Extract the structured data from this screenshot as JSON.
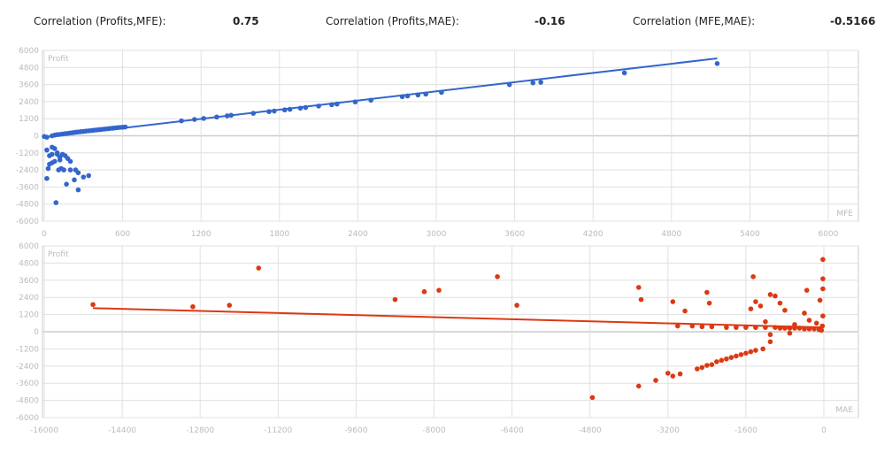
{
  "correlations": [
    {
      "label": "Correlation (Profits,MFE):",
      "value": "0.75"
    },
    {
      "label": "Correlation (Profits,MAE):",
      "value": "-0.16"
    },
    {
      "label": "Correlation (MFE,MAE):",
      "value": "-0.5166"
    }
  ],
  "colors": {
    "mfe": "#3366cc",
    "mae": "#dc3912",
    "grid": "#e0e0e0",
    "tick": "#bbbbbb"
  },
  "chart_data": [
    {
      "type": "scatter",
      "title": "",
      "xlabel": "MFE",
      "ylabel": "Profit",
      "xlim": [
        0,
        6230
      ],
      "ylim": [
        -6000,
        6000
      ],
      "xticks": [
        "0",
        "600",
        "1200",
        "1800",
        "2400",
        "3000",
        "3600",
        "4200",
        "4800",
        "5400",
        "6000"
      ],
      "yticks": [
        "6000",
        "4800",
        "3600",
        "2400",
        "1200",
        "0",
        "-1200",
        "-2400",
        "-3600",
        "-4800",
        "-6000"
      ],
      "trendline": [
        [
          0,
          -100
        ],
        [
          5150,
          5440
        ]
      ],
      "points": [
        [
          0,
          -50
        ],
        [
          20,
          -100
        ],
        [
          60,
          0
        ],
        [
          80,
          50
        ],
        [
          100,
          80
        ],
        [
          120,
          100
        ],
        [
          140,
          120
        ],
        [
          160,
          150
        ],
        [
          180,
          170
        ],
        [
          200,
          200
        ],
        [
          220,
          220
        ],
        [
          240,
          250
        ],
        [
          260,
          270
        ],
        [
          280,
          290
        ],
        [
          300,
          310
        ],
        [
          320,
          330
        ],
        [
          340,
          350
        ],
        [
          360,
          370
        ],
        [
          380,
          390
        ],
        [
          400,
          410
        ],
        [
          420,
          430
        ],
        [
          440,
          450
        ],
        [
          460,
          470
        ],
        [
          480,
          490
        ],
        [
          500,
          510
        ],
        [
          520,
          530
        ],
        [
          540,
          550
        ],
        [
          560,
          570
        ],
        [
          580,
          590
        ],
        [
          600,
          600
        ],
        [
          620,
          620
        ],
        [
          1050,
          1050
        ],
        [
          1150,
          1150
        ],
        [
          1220,
          1220
        ],
        [
          1320,
          1320
        ],
        [
          1400,
          1400
        ],
        [
          1430,
          1440
        ],
        [
          1600,
          1580
        ],
        [
          1720,
          1700
        ],
        [
          1760,
          1740
        ],
        [
          1840,
          1820
        ],
        [
          1880,
          1860
        ],
        [
          1960,
          1940
        ],
        [
          2000,
          1990
        ],
        [
          2100,
          2090
        ],
        [
          2200,
          2180
        ],
        [
          2240,
          2230
        ],
        [
          2380,
          2380
        ],
        [
          2500,
          2500
        ],
        [
          2740,
          2750
        ],
        [
          2780,
          2800
        ],
        [
          2860,
          2870
        ],
        [
          2920,
          2930
        ],
        [
          3040,
          3050
        ],
        [
          3560,
          3600
        ],
        [
          3740,
          3720
        ],
        [
          3800,
          3760
        ],
        [
          4440,
          4420
        ],
        [
          5150,
          5080
        ],
        [
          20,
          -1000
        ],
        [
          60,
          -800
        ],
        [
          80,
          -900
        ],
        [
          40,
          -1400
        ],
        [
          60,
          -1300
        ],
        [
          100,
          -1200
        ],
        [
          120,
          -1500
        ],
        [
          140,
          -1300
        ],
        [
          160,
          -1400
        ],
        [
          180,
          -1600
        ],
        [
          200,
          -1800
        ],
        [
          60,
          -1900
        ],
        [
          40,
          -2000
        ],
        [
          80,
          -1800
        ],
        [
          110,
          -2400
        ],
        [
          130,
          -2300
        ],
        [
          150,
          -2400
        ],
        [
          200,
          -2400
        ],
        [
          30,
          -2300
        ],
        [
          240,
          -2400
        ],
        [
          260,
          -2600
        ],
        [
          20,
          -3000
        ],
        [
          170,
          -3400
        ],
        [
          230,
          -3100
        ],
        [
          260,
          -3800
        ],
        [
          300,
          -2900
        ],
        [
          340,
          -2800
        ],
        [
          90,
          -4700
        ],
        [
          100,
          -1300
        ],
        [
          120,
          -1700
        ]
      ]
    },
    {
      "type": "scatter",
      "title": "",
      "xlabel": "MAE",
      "ylabel": "Profit",
      "xlim": [
        -16300,
        700
      ],
      "ylim": [
        -6000,
        6000
      ],
      "xticks": [
        "-16000",
        "-14400",
        "-12800",
        "-11200",
        "-9600",
        "-8000",
        "-6400",
        "-4800",
        "-3200",
        "-1600",
        "0"
      ],
      "yticks": [
        "6000",
        "4800",
        "3600",
        "2400",
        "1200",
        "0",
        "-1200",
        "-2400",
        "-3600",
        "-4800",
        "-6000"
      ],
      "trendline": [
        [
          -15000,
          1650
        ],
        [
          0,
          300
        ]
      ],
      "points": [
        [
          -15000,
          1900
        ],
        [
          -12950,
          1750
        ],
        [
          -12200,
          1850
        ],
        [
          -11600,
          4450
        ],
        [
          -8800,
          2250
        ],
        [
          -8200,
          2800
        ],
        [
          -7900,
          2900
        ],
        [
          -6700,
          3850
        ],
        [
          -6300,
          1850
        ],
        [
          -4750,
          -4600
        ],
        [
          -3800,
          3100
        ],
        [
          -3750,
          2250
        ],
        [
          -3800,
          -3800
        ],
        [
          -3450,
          -3400
        ],
        [
          -3200,
          -2900
        ],
        [
          -3100,
          -3100
        ],
        [
          -2950,
          -2950
        ],
        [
          -3100,
          2100
        ],
        [
          -2850,
          1450
        ],
        [
          -2600,
          -2600
        ],
        [
          -2500,
          -2500
        ],
        [
          -2400,
          -2350
        ],
        [
          -2300,
          -2300
        ],
        [
          -2400,
          2750
        ],
        [
          -2350,
          2000
        ],
        [
          -2200,
          -2100
        ],
        [
          -2100,
          -2000
        ],
        [
          -2000,
          -1900
        ],
        [
          -1900,
          -1800
        ],
        [
          -1800,
          -1700
        ],
        [
          -1700,
          -1600
        ],
        [
          -1600,
          -1500
        ],
        [
          -1500,
          -1400
        ],
        [
          -1400,
          -1300
        ],
        [
          -1250,
          -1200
        ],
        [
          -1100,
          -700
        ],
        [
          -1450,
          3850
        ],
        [
          -1400,
          2100
        ],
        [
          -1500,
          1600
        ],
        [
          -1300,
          1800
        ],
        [
          -1100,
          2600
        ],
        [
          -1000,
          2500
        ],
        [
          -900,
          2000
        ],
        [
          -800,
          1500
        ],
        [
          -350,
          2900
        ],
        [
          -400,
          1300
        ],
        [
          -2700,
          400
        ],
        [
          -2500,
          350
        ],
        [
          -2300,
          350
        ],
        [
          -2000,
          300
        ],
        [
          -1800,
          300
        ],
        [
          -1600,
          300
        ],
        [
          -1400,
          300
        ],
        [
          -1200,
          300
        ],
        [
          -1000,
          300
        ],
        [
          -900,
          250
        ],
        [
          -800,
          250
        ],
        [
          -700,
          250
        ],
        [
          -600,
          250
        ],
        [
          -500,
          250
        ],
        [
          -400,
          200
        ],
        [
          -300,
          200
        ],
        [
          -200,
          200
        ],
        [
          -100,
          150
        ],
        [
          -50,
          100
        ],
        [
          -30,
          400
        ],
        [
          -20,
          5050
        ],
        [
          -20,
          3700
        ],
        [
          -20,
          3000
        ],
        [
          -80,
          2200
        ],
        [
          -20,
          1100
        ],
        [
          -3000,
          400
        ],
        [
          -1200,
          700
        ],
        [
          -600,
          500
        ],
        [
          -300,
          800
        ],
        [
          -150,
          600
        ],
        [
          -1100,
          -200
        ],
        [
          -700,
          -100
        ]
      ]
    }
  ]
}
